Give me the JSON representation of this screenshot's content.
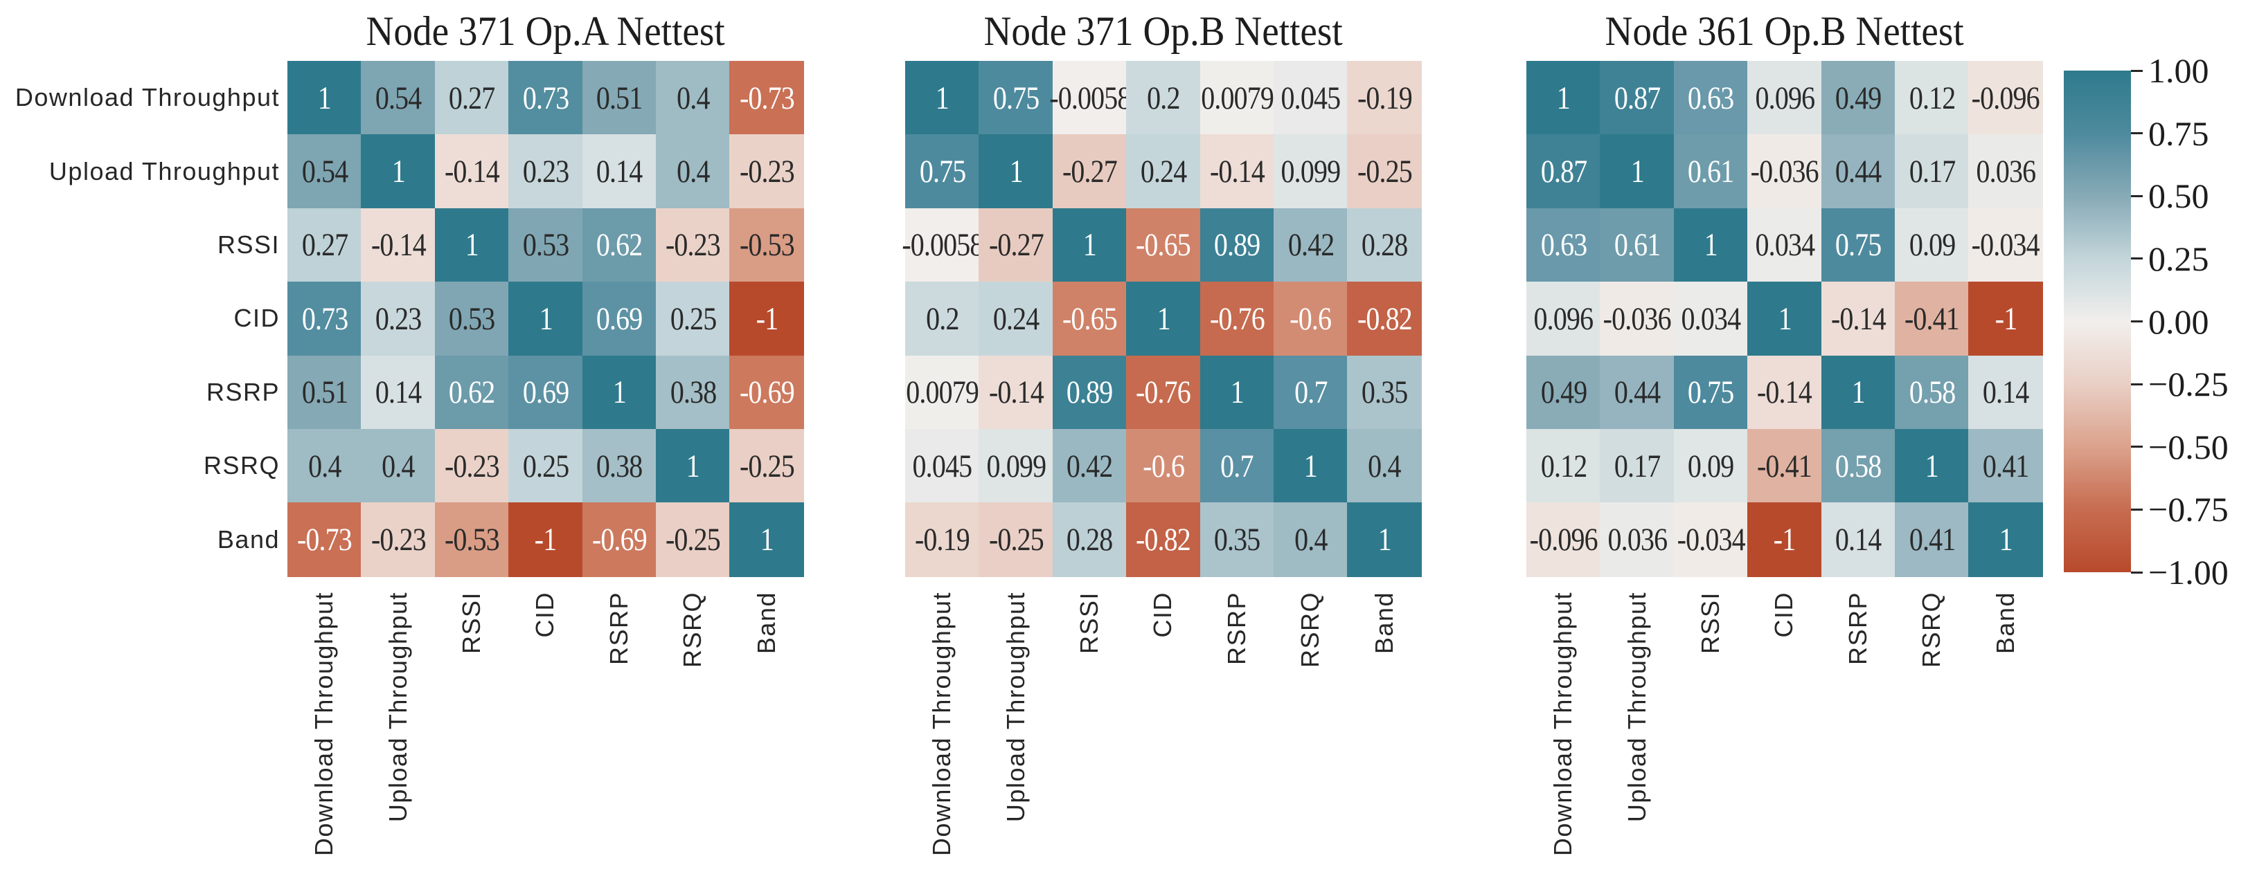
{
  "figure": {
    "background": "#ffffff"
  },
  "variables": [
    "Download Throughput",
    "Upload Throughput",
    "RSSI",
    "CID",
    "RSRP",
    "RSRQ",
    "Band"
  ],
  "chart_data": [
    {
      "type": "heatmap",
      "title": "Node 371 Op.A Nettest",
      "categories": [
        "Download Throughput",
        "Upload Throughput",
        "RSSI",
        "CID",
        "RSRP",
        "RSRQ",
        "Band"
      ],
      "values": [
        [
          1,
          0.54,
          0.27,
          0.73,
          0.51,
          0.4,
          -0.73
        ],
        [
          0.54,
          1,
          -0.14,
          0.23,
          0.14,
          0.4,
          -0.23
        ],
        [
          0.27,
          -0.14,
          1,
          0.53,
          0.62,
          -0.23,
          -0.53
        ],
        [
          0.73,
          0.23,
          0.53,
          1,
          0.69,
          0.25,
          -1
        ],
        [
          0.51,
          0.14,
          0.62,
          0.69,
          1,
          0.38,
          -0.69
        ],
        [
          0.4,
          0.4,
          -0.23,
          0.25,
          0.38,
          1,
          -0.25
        ],
        [
          -0.73,
          -0.23,
          -0.53,
          -1,
          -0.69,
          -0.25,
          1
        ]
      ]
    },
    {
      "type": "heatmap",
      "title": "Node 371 Op.B Nettest",
      "categories": [
        "Download Throughput",
        "Upload Throughput",
        "RSSI",
        "CID",
        "RSRP",
        "RSRQ",
        "Band"
      ],
      "values": [
        [
          1,
          0.75,
          -0.0058,
          0.2,
          0.0079,
          0.045,
          -0.19
        ],
        [
          0.75,
          1,
          -0.27,
          0.24,
          -0.14,
          0.099,
          -0.25
        ],
        [
          -0.0058,
          -0.27,
          1,
          -0.65,
          0.89,
          0.42,
          0.28
        ],
        [
          0.2,
          0.24,
          -0.65,
          1,
          -0.76,
          -0.6,
          -0.82
        ],
        [
          0.0079,
          -0.14,
          0.89,
          -0.76,
          1,
          0.7,
          0.35
        ],
        [
          0.045,
          0.099,
          0.42,
          -0.6,
          0.7,
          1,
          0.4
        ],
        [
          -0.19,
          -0.25,
          0.28,
          -0.82,
          0.35,
          0.4,
          1
        ]
      ]
    },
    {
      "type": "heatmap",
      "title": "Node 361 Op.B Nettest",
      "categories": [
        "Download Throughput",
        "Upload Throughput",
        "RSSI",
        "CID",
        "RSRP",
        "RSRQ",
        "Band"
      ],
      "values": [
        [
          1,
          0.87,
          0.63,
          0.096,
          0.49,
          0.12,
          -0.096
        ],
        [
          0.87,
          1,
          0.61,
          -0.036,
          0.44,
          0.17,
          0.036
        ],
        [
          0.63,
          0.61,
          1,
          0.034,
          0.75,
          0.09,
          -0.034
        ],
        [
          0.096,
          -0.036,
          0.034,
          1,
          -0.14,
          -0.41,
          -1
        ],
        [
          0.49,
          0.44,
          0.75,
          -0.14,
          1,
          0.58,
          0.14
        ],
        [
          0.12,
          0.17,
          0.09,
          -0.41,
          0.58,
          1,
          0.41
        ],
        [
          -0.096,
          0.036,
          -0.034,
          -1,
          0.14,
          0.41,
          1
        ]
      ]
    }
  ],
  "colorbar": {
    "vmin": -1,
    "vmax": 1,
    "tick_labels": [
      "1.00",
      "0.75",
      "0.50",
      "0.25",
      "0.00",
      "−0.25",
      "−0.50",
      "−0.75",
      "−1.00"
    ]
  },
  "colormap": {
    "anchors": [
      {
        "v": -1.0,
        "color": "#b84a2c"
      },
      {
        "v": -0.75,
        "color": "#c76c50"
      },
      {
        "v": -0.5,
        "color": "#dba28c"
      },
      {
        "v": -0.25,
        "color": "#e9cfc5"
      },
      {
        "v": 0.0,
        "color": "#f1efec"
      },
      {
        "v": 0.25,
        "color": "#c3d5da"
      },
      {
        "v": 0.5,
        "color": "#87aab6"
      },
      {
        "v": 0.75,
        "color": "#4e8a9e"
      },
      {
        "v": 1.0,
        "color": "#2e7a8c"
      }
    ]
  },
  "annotation_style": {
    "dark_text": "#2a2a2a",
    "light_text": "#ffffff",
    "light_text_threshold": 0.56
  }
}
